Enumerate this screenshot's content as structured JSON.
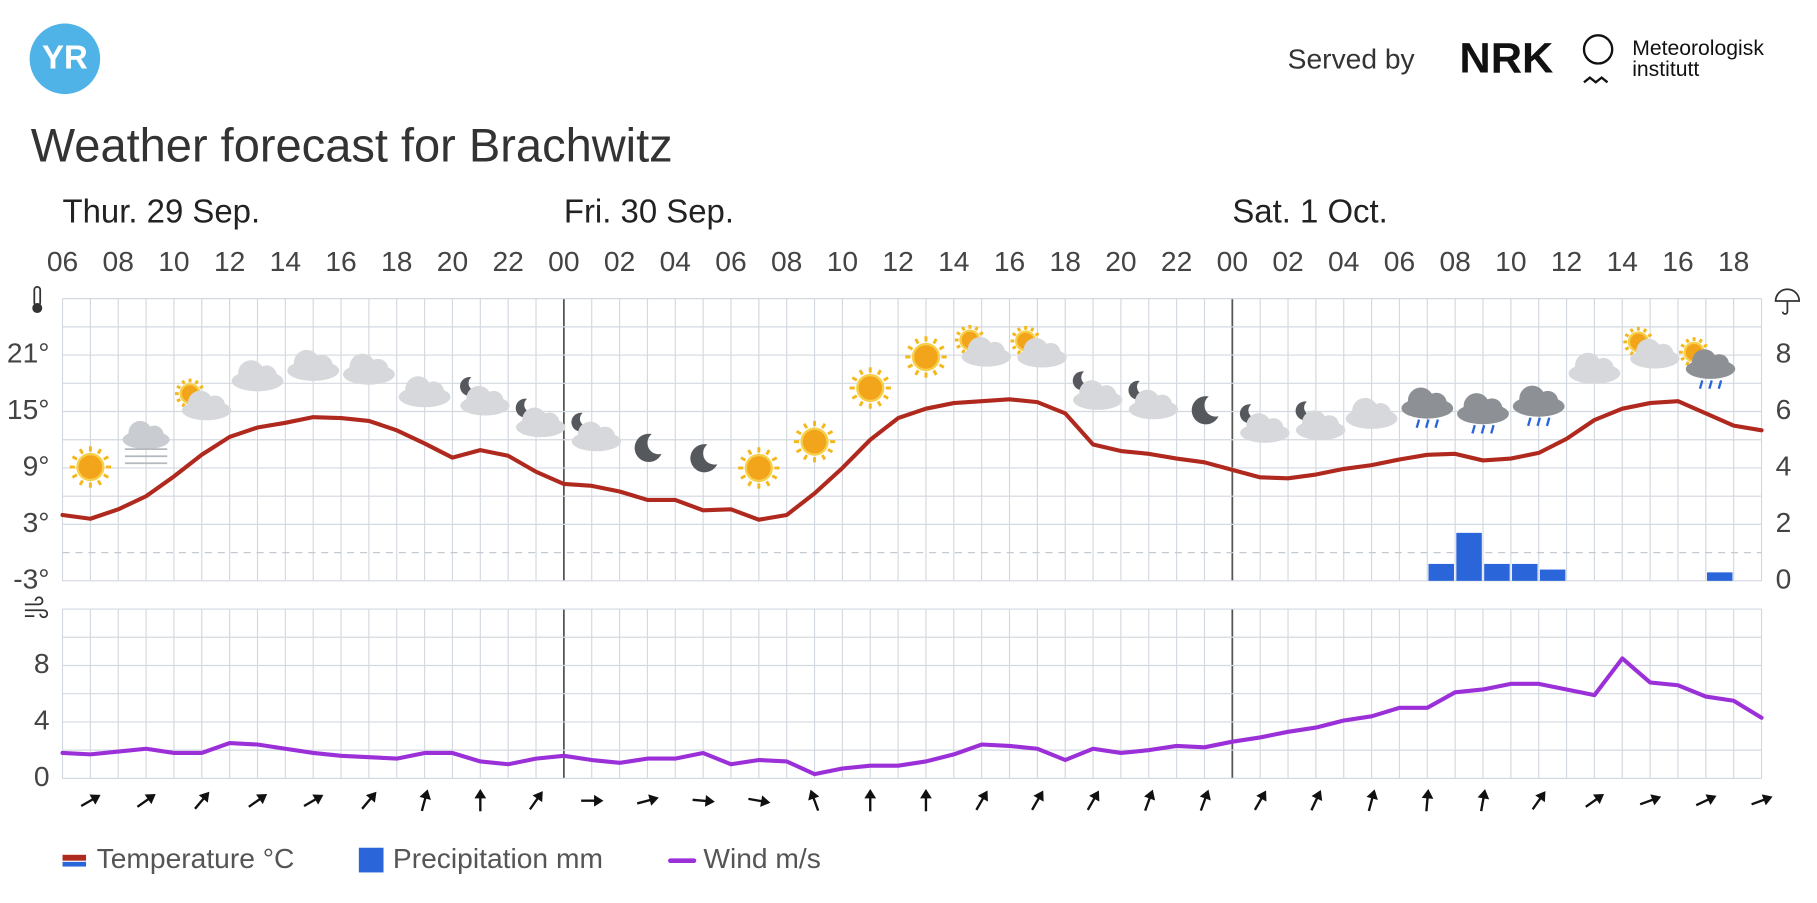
{
  "header": {
    "logo": "YR",
    "served_by": "Served by",
    "nrk": "NRK",
    "met_line1": "Meteorologisk",
    "met_line2": "institutt",
    "title": "Weather forecast for Brachwitz"
  },
  "days": [
    "Thur. 29 Sep.",
    "Fri. 30 Sep.",
    "Sat. 1 Oct."
  ],
  "chart_data": [
    {
      "type": "line",
      "x": [
        "06",
        null,
        "08",
        null,
        "10",
        null,
        "12",
        null,
        "14",
        null,
        "16",
        null,
        "18",
        null,
        "20",
        null,
        "22",
        null,
        "00",
        null,
        "02",
        null,
        "04",
        null,
        "06",
        null,
        "08",
        null,
        "10",
        null,
        "12",
        null,
        "14",
        null,
        "16",
        null,
        "18",
        null,
        "20",
        null,
        "22",
        null,
        "00",
        null,
        "02",
        null,
        "04",
        null,
        "06",
        null,
        "08",
        null,
        "10",
        null,
        "12",
        null,
        "14",
        null,
        "16",
        null,
        "18",
        null
      ],
      "ylim": [
        -3,
        27
      ],
      "yticks": [
        {
          "value": -3,
          "label": "-3°"
        },
        {
          "value": 3,
          "label": "3°"
        },
        {
          "value": 9,
          "label": "9°"
        },
        {
          "value": 15,
          "label": "15°"
        },
        {
          "value": 21,
          "label": "21°"
        }
      ],
      "minor_yticks": [
        0,
        6,
        12,
        18,
        24,
        27
      ],
      "y2lim": [
        0,
        10
      ],
      "y2ticks": [
        0,
        2,
        4,
        6,
        8
      ],
      "grid": true,
      "series": [
        {
          "name": "Temperature °C",
          "color": "#b0291f",
          "values": [
            4.0,
            3.6,
            4.6,
            6,
            8.1,
            10.4,
            12.3,
            13.3,
            13.8,
            14.4,
            14.3,
            14,
            13,
            11.6,
            10.1,
            10.9,
            10.3,
            8.6,
            7.3,
            7.1,
            6.5,
            5.6,
            5.6,
            4.5,
            4.6,
            3.5,
            4,
            6.3,
            9,
            12,
            14.3,
            15.3,
            15.9,
            16.1,
            16.3,
            16,
            14.8,
            11.5,
            10.8,
            10.5,
            10,
            9.6,
            8.8,
            8,
            7.9,
            8.3,
            8.9,
            9.3,
            9.9,
            10.4,
            10.5,
            9.8,
            10,
            10.6,
            12.1,
            14.1,
            15.3,
            15.9,
            16.1,
            14.8,
            13.5,
            13
          ]
        },
        {
          "name": "Precipitation mm",
          "color": "#2a66d9",
          "axis": "y2",
          "values": [
            0,
            0,
            0,
            0,
            0,
            0,
            0,
            0,
            0,
            0,
            0,
            0,
            0,
            0,
            0,
            0,
            0,
            0,
            0,
            0,
            0,
            0,
            0,
            0,
            0,
            0,
            0,
            0,
            0,
            0,
            0,
            0,
            0,
            0,
            0,
            0,
            0,
            0,
            0,
            0,
            0,
            0,
            0,
            0,
            0,
            0,
            0,
            0,
            0,
            0.6,
            1.7,
            0.6,
            0.6,
            0.4,
            0,
            0,
            0,
            0,
            0,
            0.3,
            0,
            0
          ]
        }
      ]
    },
    {
      "type": "line",
      "ylim": [
        0,
        12
      ],
      "yticks": [
        0,
        4,
        8
      ],
      "minor_yticks": [
        2,
        6,
        10,
        12
      ],
      "grid": true,
      "series": [
        {
          "name": "Wind m/s",
          "color": "#9b30d9",
          "values": [
            1.8,
            1.7,
            1.9,
            2.1,
            1.8,
            1.8,
            2.5,
            2.4,
            2.1,
            1.8,
            1.6,
            1.5,
            1.4,
            1.8,
            1.8,
            1.2,
            1,
            1.4,
            1.6,
            1.3,
            1.1,
            1.4,
            1.4,
            1.8,
            1,
            1.3,
            1.2,
            0.3,
            0.7,
            0.9,
            0.9,
            1.2,
            1.7,
            2.4,
            2.3,
            2.1,
            1.3,
            2.1,
            1.8,
            2,
            2.3,
            2.2,
            2.6,
            2.9,
            3.3,
            3.6,
            4.1,
            4.4,
            5,
            5,
            6.1,
            6.3,
            6.7,
            6.7,
            6.3,
            5.9,
            8.5,
            6.8,
            6.6,
            5.8,
            5.5,
            4.3
          ]
        }
      ],
      "wind_direction": [
        null,
        60,
        null,
        55,
        null,
        40,
        null,
        55,
        null,
        60,
        null,
        40,
        null,
        15,
        null,
        0,
        null,
        35,
        null,
        90,
        null,
        75,
        null,
        95,
        null,
        100,
        null,
        -20,
        null,
        0,
        null,
        0,
        null,
        30,
        null,
        30,
        null,
        30,
        null,
        20,
        null,
        20,
        null,
        30,
        null,
        25,
        null,
        15,
        null,
        5,
        null,
        10,
        null,
        35,
        null,
        55,
        null,
        70,
        null,
        65,
        null,
        70
      ]
    }
  ]
}
